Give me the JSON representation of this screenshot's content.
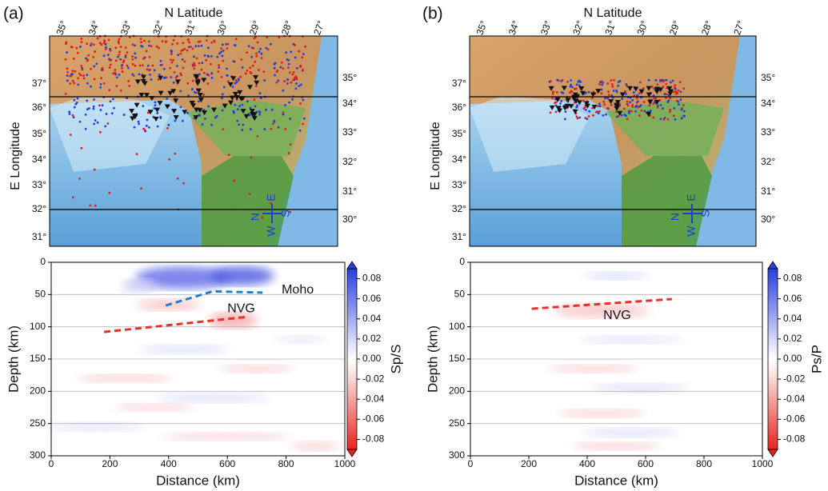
{
  "panel_labels": [
    "(a)",
    "(b)"
  ],
  "maps": [
    {
      "top_axis_title": "N Latitude",
      "left_axis_title": "E Longitude",
      "top_ticks": [
        "35°",
        "34°",
        "33°",
        "32°",
        "31°",
        "30°",
        "29°",
        "28°",
        "27°"
      ],
      "left_ticks": [
        "37°",
        "36°",
        "35°",
        "34°",
        "33°",
        "32°",
        "31°"
      ],
      "right_ticks": [
        "35°",
        "34°",
        "33°",
        "32°",
        "31°",
        "30°"
      ],
      "compass": [
        "N",
        "E",
        "S",
        "W"
      ]
    },
    {
      "top_axis_title": "N Latitude",
      "left_axis_title": "E Longitude",
      "top_ticks": [
        "35°",
        "34°",
        "33°",
        "32°",
        "31°",
        "30°",
        "29°",
        "28°",
        "27°"
      ],
      "left_ticks": [
        "37°",
        "36°",
        "35°",
        "34°",
        "33°",
        "32°",
        "31°"
      ],
      "right_ticks": [
        "35°",
        "34°",
        "33°",
        "32°",
        "31°",
        "30°"
      ],
      "compass": [
        "N",
        "E",
        "S",
        "W"
      ]
    }
  ],
  "chart_data": [
    {
      "type": "line",
      "x_label": "Distance (km)",
      "y_label": "Depth (km)",
      "xlim": [
        0,
        1000
      ],
      "xticks": [
        0,
        200,
        400,
        600,
        800,
        1000
      ],
      "ylim": [
        300,
        0
      ],
      "yticks": [
        0,
        50,
        100,
        150,
        200,
        250,
        300
      ],
      "grid": true,
      "series": [
        {
          "name": "Moho",
          "color": "#1f7fd0",
          "x": [
            390,
            550,
            720
          ],
          "values": [
            67,
            45,
            47
          ]
        },
        {
          "name": "NVG",
          "color": "#e8302a",
          "x": [
            180,
            660
          ],
          "values": [
            108,
            85
          ]
        }
      ],
      "colorbar": {
        "label": "Sp/S",
        "lim": [
          -0.09,
          0.09
        ],
        "ticks": [
          0.08,
          0.06,
          0.04,
          0.02,
          {
            "value": 0,
            "label": "0.00"
          },
          -0.02,
          -0.04,
          -0.06,
          -0.08
        ]
      }
    },
    {
      "type": "line",
      "x_label": "Distance (km)",
      "y_label": "Depth (km)",
      "xlim": [
        0,
        1000
      ],
      "xticks": [
        0,
        200,
        400,
        600,
        800,
        1000
      ],
      "ylim": [
        300,
        0
      ],
      "yticks": [
        0,
        50,
        100,
        150,
        200,
        250,
        300
      ],
      "grid": true,
      "series": [
        {
          "name": "NVG",
          "color": "#e8302a",
          "x": [
            210,
            690
          ],
          "values": [
            72,
            57
          ]
        }
      ],
      "colorbar": {
        "label": "Ps/P",
        "lim": [
          -0.09,
          0.09
        ],
        "ticks": [
          0.08,
          0.06,
          0.04,
          0.02,
          {
            "value": 0,
            "label": "0.00"
          },
          -0.02,
          -0.04,
          -0.06,
          -0.08
        ]
      }
    }
  ]
}
